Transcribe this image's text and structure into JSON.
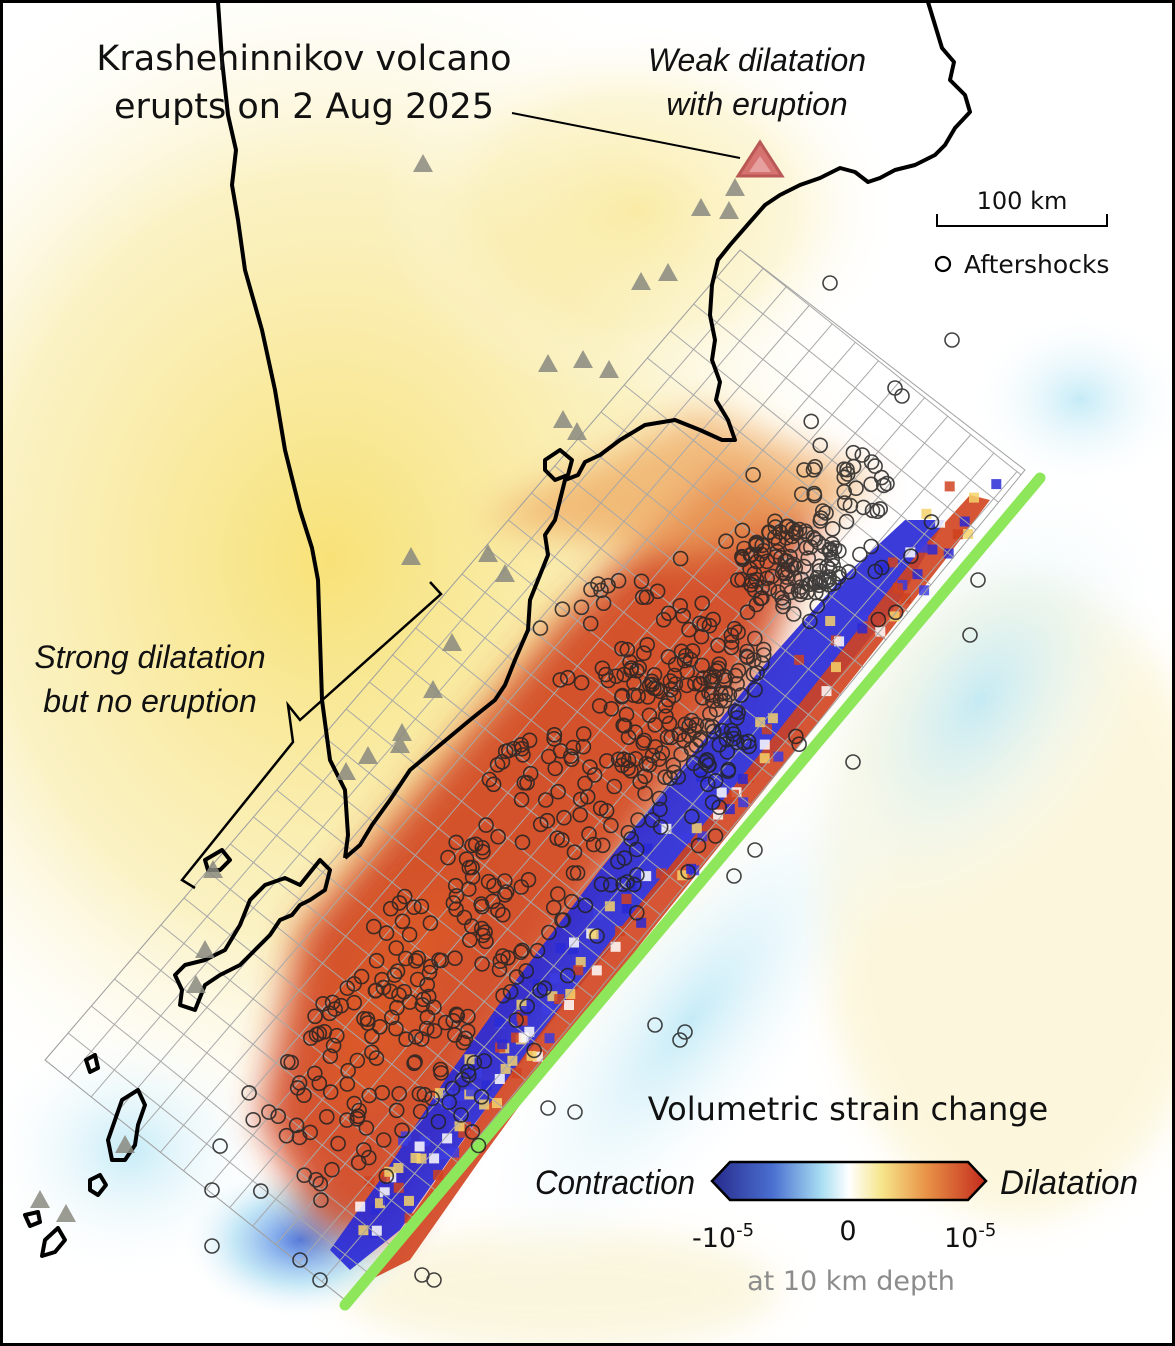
{
  "annotations": {
    "volcano_line1": "Krasheninnikov volcano",
    "volcano_line2": "erupts on 2 Aug 2025",
    "weak_line1": "Weak dilatation",
    "weak_line2": "with eruption",
    "strong_line1": "Strong dilatation",
    "strong_line2": "but no eruption"
  },
  "scale_bar": {
    "label": "100 km"
  },
  "legend": {
    "aftershocks_label": "Aftershocks",
    "colorbar_title": "Volumetric strain change",
    "left_label": "Contraction",
    "right_label": "Dilatation",
    "tick_min_base": "-10",
    "tick_min_exp": "-5",
    "tick_zero": "0",
    "tick_max_base": "10",
    "tick_max_exp": "-5",
    "depth_note": "at 10 km depth"
  },
  "colors": {
    "contraction": "#2a2ad6",
    "neutral": "#ffffff",
    "weak_dilatation": "#f6e79a",
    "dilatation": "#c8321e",
    "trench": "#8ee65a",
    "volcano_marker": "#d26464",
    "volcano_triangle": "#8a8a80",
    "coastline": "#000000"
  },
  "icons": {
    "volcano": "triangle-icon",
    "erupting_volcano": "highlighted-triangle-icon",
    "aftershock": "open-circle-icon"
  }
}
